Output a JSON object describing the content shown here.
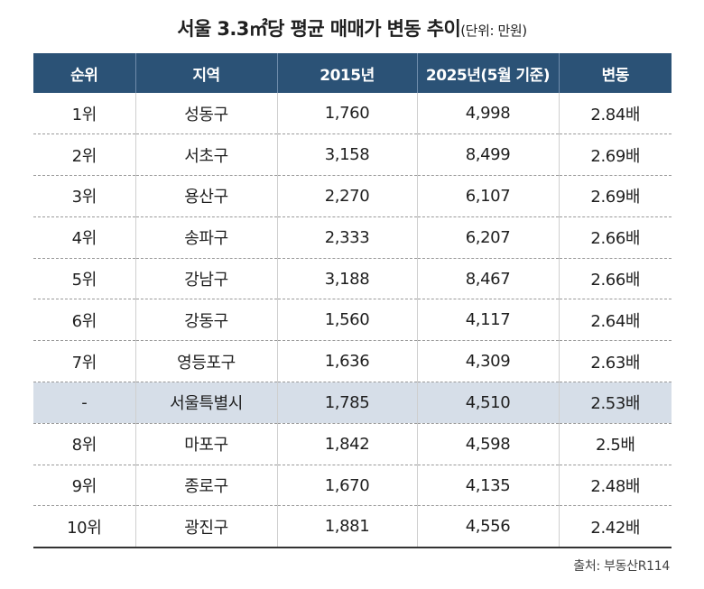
{
  "title": "서울 3.3㎡당 평균 매매가 변동 추이",
  "unit": "(단위: 만원)",
  "source": "출처: 부동산R114",
  "colors": {
    "header_bg": "#2b5276",
    "highlight_row": "#d6dee8"
  },
  "chart_data": {
    "type": "table",
    "title": "서울 3.3㎡당 평균 매매가 변동 추이",
    "columns": [
      "순위",
      "지역",
      "2015년",
      "2025년(5월 기준)",
      "변동"
    ],
    "rows": [
      [
        "1위",
        "성동구",
        "1,760",
        "4,998",
        "2.84배"
      ],
      [
        "2위",
        "서초구",
        "3,158",
        "8,499",
        "2.69배"
      ],
      [
        "3위",
        "용산구",
        "2,270",
        "6,107",
        "2.69배"
      ],
      [
        "4위",
        "송파구",
        "2,333",
        "6,207",
        "2.66배"
      ],
      [
        "5위",
        "강남구",
        "3,188",
        "8,467",
        "2.66배"
      ],
      [
        "6위",
        "강동구",
        "1,560",
        "4,117",
        "2.64배"
      ],
      [
        "7위",
        "영등포구",
        "1,636",
        "4,309",
        "2.63배"
      ],
      [
        "-",
        "서울특별시",
        "1,785",
        "4,510",
        "2.53배"
      ],
      [
        "8위",
        "마포구",
        "1,842",
        "4,598",
        "2.5배"
      ],
      [
        "9위",
        "종로구",
        "1,670",
        "4,135",
        "2.48배"
      ],
      [
        "10위",
        "광진구",
        "1,881",
        "4,556",
        "2.42배"
      ]
    ],
    "highlight_row_index": 7
  }
}
